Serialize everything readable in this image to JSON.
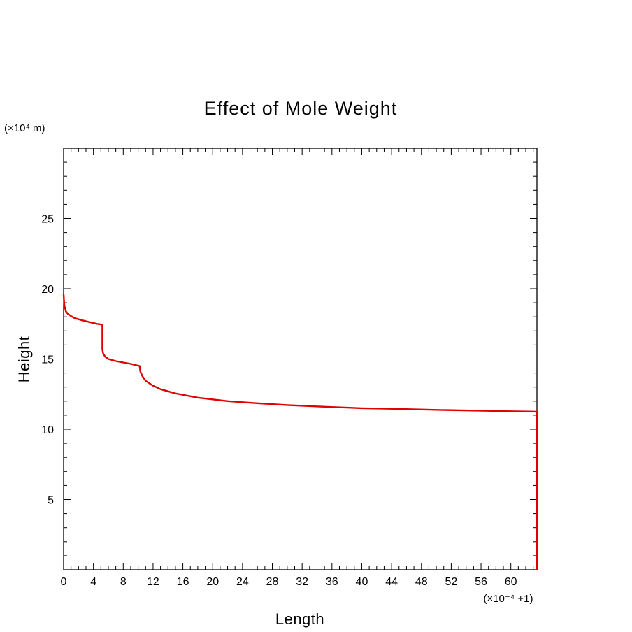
{
  "chart_data": {
    "type": "line",
    "title": "Effect of Mole Weight",
    "xlabel": "Length",
    "ylabel": "Height",
    "x_scale_note": "(×10⁻⁴ +1)",
    "y_scale_note": "(×10⁴ m)",
    "xlim": [
      0,
      63.5
    ],
    "ylim": [
      0,
      30
    ],
    "x_ticks": [
      0,
      4,
      8,
      12,
      16,
      20,
      24,
      28,
      32,
      36,
      40,
      44,
      48,
      52,
      56,
      60
    ],
    "x_tick_labels": [
      "0",
      "4",
      "8",
      "12",
      "16",
      "20",
      "24",
      "28",
      "32",
      "36",
      "40",
      "44",
      "48",
      "52",
      "56",
      "60"
    ],
    "y_ticks": [
      5,
      10,
      15,
      20,
      25
    ],
    "y_tick_labels": [
      "5",
      "10",
      "15",
      "20",
      "25"
    ],
    "grid": false,
    "legend": "none",
    "series": [
      {
        "color": "#e00000",
        "x": [
          0,
          0.1,
          0.3,
          0.6,
          1.0,
          1.5,
          2.5,
          3.5,
          4.5,
          5.2,
          5.2,
          5.3,
          5.6,
          6.0,
          7.0,
          8.0,
          9.0,
          10.2,
          10.3,
          10.6,
          11.0,
          12.0,
          13.0,
          15.0,
          18.0,
          22.0,
          26.0,
          30.0,
          35.0,
          40.0,
          45.0,
          50.0,
          55.0,
          60.0,
          63.5,
          63.5
        ],
        "y": [
          19.6,
          18.8,
          18.4,
          18.2,
          18.05,
          17.9,
          17.75,
          17.62,
          17.5,
          17.45,
          15.7,
          15.4,
          15.15,
          15.0,
          14.85,
          14.75,
          14.65,
          14.5,
          14.1,
          13.75,
          13.45,
          13.1,
          12.85,
          12.55,
          12.25,
          12.0,
          11.85,
          11.72,
          11.6,
          11.5,
          11.45,
          11.38,
          11.33,
          11.28,
          11.25,
          0
        ]
      }
    ]
  }
}
